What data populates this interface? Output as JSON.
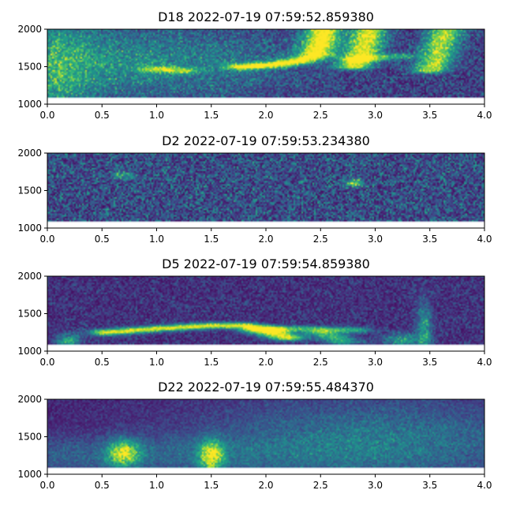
{
  "chart_data": [
    {
      "type": "heatmap",
      "title": "D18 2022-07-19 07:59:52.859380",
      "xlabel": "",
      "ylabel": "",
      "xlim": [
        0.0,
        4.0
      ],
      "ylim": [
        1000,
        2000
      ],
      "data_ylim": [
        1080,
        2000
      ],
      "xticks": [
        "0.0",
        "0.5",
        "1.0",
        "1.5",
        "2.0",
        "2.5",
        "3.0",
        "3.5",
        "4.0"
      ],
      "yticks": [
        "1000",
        "1500",
        "2000"
      ],
      "noise": 0.32,
      "features": [
        {
          "kind": "curve",
          "points": [
            [
              1.0,
              1470
            ],
            [
              1.2,
              1450
            ]
          ],
          "strength": 0.55
        },
        {
          "kind": "curve",
          "points": [
            [
              1.8,
              1500
            ],
            [
              2.1,
              1530
            ],
            [
              2.3,
              1580
            ],
            [
              2.45,
              1650
            ],
            [
              2.5,
              1800
            ],
            [
              2.53,
              1990
            ]
          ],
          "strength": 0.9
        },
        {
          "kind": "curve",
          "points": [
            [
              2.8,
              1500
            ],
            [
              2.85,
              1600
            ],
            [
              2.9,
              1750
            ],
            [
              2.95,
              1990
            ]
          ],
          "strength": 0.8
        },
        {
          "kind": "curve",
          "points": [
            [
              2.85,
              1600
            ],
            [
              3.2,
              1640
            ]
          ],
          "strength": 0.45
        },
        {
          "kind": "curve",
          "points": [
            [
              3.5,
              1450
            ],
            [
              3.55,
              1550
            ],
            [
              3.6,
              1800
            ],
            [
              3.65,
              1990
            ]
          ],
          "strength": 0.7
        },
        {
          "kind": "blob",
          "center": [
            0.1,
            1500
          ],
          "size": [
            0.2,
            450
          ],
          "strength": 0.35
        },
        {
          "kind": "blob",
          "center": [
            0.5,
            1550
          ],
          "size": [
            0.5,
            350
          ],
          "strength": 0.25
        },
        {
          "kind": "blob",
          "center": [
            1.5,
            1550
          ],
          "size": [
            0.6,
            300
          ],
          "strength": 0.2
        }
      ]
    },
    {
      "type": "heatmap",
      "title": "D2 2022-07-19 07:59:53.234380",
      "xlabel": "",
      "ylabel": "",
      "xlim": [
        0.0,
        4.0
      ],
      "ylim": [
        1000,
        2000
      ],
      "data_ylim": [
        1080,
        2000
      ],
      "xticks": [
        "0.0",
        "0.5",
        "1.0",
        "1.5",
        "2.0",
        "2.5",
        "3.0",
        "3.5",
        "4.0"
      ],
      "yticks": [
        "1000",
        "1500",
        "2000"
      ],
      "noise": 0.42,
      "features": [
        {
          "kind": "blob",
          "center": [
            2.8,
            1600
          ],
          "size": [
            0.06,
            40
          ],
          "strength": 0.5
        },
        {
          "kind": "blob",
          "center": [
            0.7,
            1700
          ],
          "size": [
            0.08,
            40
          ],
          "strength": 0.35
        }
      ]
    },
    {
      "type": "heatmap",
      "title": "D5 2022-07-19 07:59:54.859380",
      "xlabel": "",
      "ylabel": "",
      "xlim": [
        0.0,
        4.0
      ],
      "ylim": [
        1000,
        2000
      ],
      "data_ylim": [
        1080,
        2000
      ],
      "xticks": [
        "0.0",
        "0.5",
        "1.0",
        "1.5",
        "2.0",
        "2.5",
        "3.0",
        "3.5",
        "4.0"
      ],
      "yticks": [
        "1000",
        "1500",
        "2000"
      ],
      "noise": 0.22,
      "features": [
        {
          "kind": "curve",
          "points": [
            [
              0.55,
              1250
            ],
            [
              1.0,
              1300
            ],
            [
              1.5,
              1340
            ],
            [
              1.8,
              1340
            ],
            [
              2.0,
              1300
            ],
            [
              2.1,
              1220
            ],
            [
              2.2,
              1180
            ]
          ],
          "strength": 0.85
        },
        {
          "kind": "curve",
          "points": [
            [
              1.9,
              1280
            ],
            [
              2.3,
              1300
            ],
            [
              2.8,
              1280
            ]
          ],
          "strength": 0.5
        },
        {
          "kind": "curve",
          "points": [
            [
              2.5,
              1250
            ],
            [
              2.6,
              1200
            ],
            [
              2.7,
              1130
            ]
          ],
          "strength": 0.5
        },
        {
          "kind": "blob",
          "center": [
            0.2,
            1150
          ],
          "size": [
            0.08,
            60
          ],
          "strength": 0.5
        },
        {
          "kind": "blob",
          "center": [
            3.25,
            1150
          ],
          "size": [
            0.12,
            60
          ],
          "strength": 0.45
        },
        {
          "kind": "blob",
          "center": [
            3.45,
            1300
          ],
          "size": [
            0.05,
            250
          ],
          "strength": 0.4
        }
      ]
    },
    {
      "type": "heatmap",
      "title": "D22 2022-07-19 07:59:55.484370",
      "xlabel": "",
      "ylabel": "",
      "xlim": [
        0.0,
        4.0
      ],
      "ylim": [
        1000,
        2000
      ],
      "data_ylim": [
        1080,
        2000
      ],
      "xticks": [
        "0.0",
        "0.5",
        "1.0",
        "1.5",
        "2.0",
        "2.5",
        "3.0",
        "3.5",
        "4.0"
      ],
      "yticks": [
        "1000",
        "1500",
        "2000"
      ],
      "noise": 0.15,
      "features": [
        {
          "kind": "blob",
          "center": [
            0.7,
            1280
          ],
          "size": [
            0.1,
            120
          ],
          "strength": 0.75
        },
        {
          "kind": "blob",
          "center": [
            1.5,
            1250
          ],
          "size": [
            0.08,
            140
          ],
          "strength": 0.75
        },
        {
          "kind": "blob",
          "center": [
            3.0,
            1450
          ],
          "size": [
            1.1,
            400
          ],
          "strength": 0.3
        },
        {
          "kind": "blob",
          "center": [
            0.5,
            1250
          ],
          "size": [
            1.5,
            180
          ],
          "strength": 0.2
        }
      ]
    }
  ]
}
